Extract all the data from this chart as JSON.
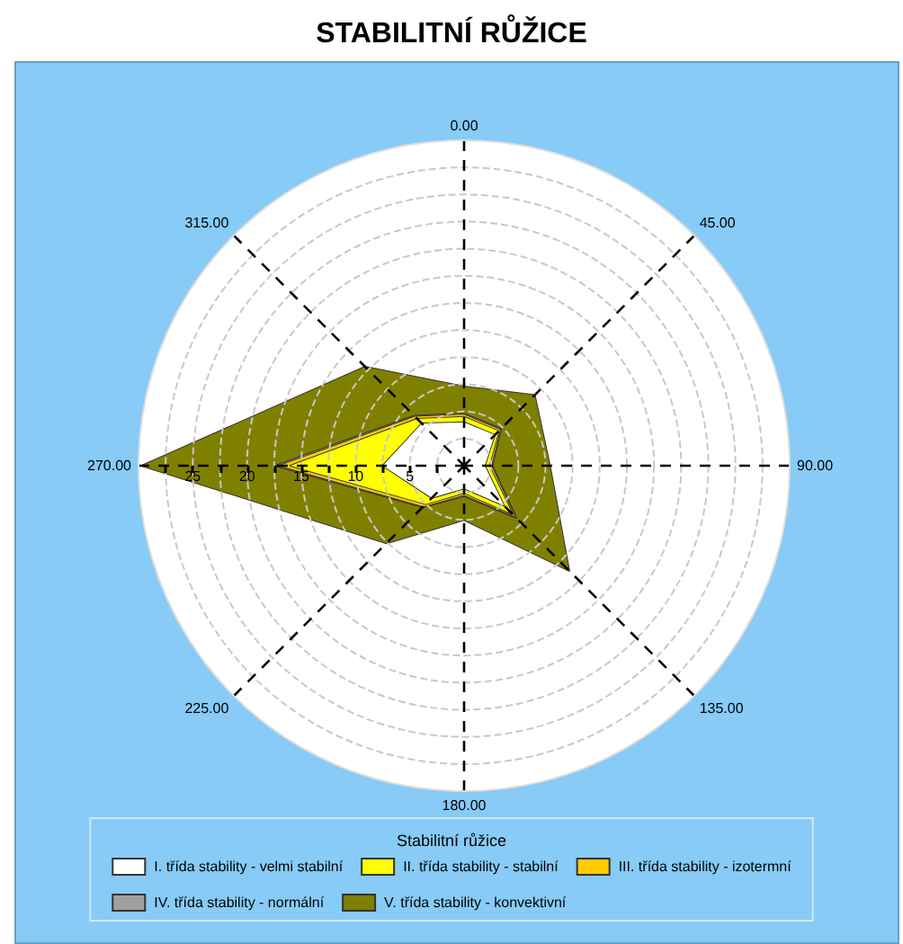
{
  "chart_data": {
    "type": "radar",
    "title": "STABILITNÍ RŮŽICE",
    "legend_title": "Stabilitní růžice",
    "categories": [
      "0.00",
      "45.00",
      "90.00",
      "135.00",
      "180.00",
      "225.00",
      "270.00",
      "315.00"
    ],
    "series": [
      {
        "name": "I. třída stability - velmi stabilní",
        "color": "#ffffff",
        "values": [
          4.0,
          4.0,
          1.9,
          5.2,
          2.1,
          4.2,
          7.5,
          5.5
        ]
      },
      {
        "name": "II. třída stability - stabilní",
        "color": "#ffff00",
        "values": [
          4.5,
          4.5,
          2.3,
          6.3,
          2.5,
          5.0,
          16.0,
          6.1
        ]
      },
      {
        "name": "III. třída stability - izotermní",
        "color": "#ffcc00",
        "values": [
          4.7,
          4.7,
          2.5,
          6.6,
          2.7,
          5.3,
          17.0,
          6.4
        ]
      },
      {
        "name": "IV. třída stability - normální",
        "color": "#a0a0a0",
        "values": [
          4.8,
          4.8,
          2.6,
          6.8,
          2.8,
          5.4,
          17.4,
          6.5
        ]
      },
      {
        "name": "V. třída stability - konvektivní",
        "color": "#808000",
        "values": [
          7.3,
          9.2,
          7.9,
          13.7,
          5.0,
          10.1,
          29.7,
          12.9
        ]
      }
    ],
    "ylim": [
      0,
      30
    ],
    "yticks": [
      5,
      10,
      15,
      20,
      25
    ],
    "grid": true,
    "legend": "bottom",
    "marker": "none"
  }
}
